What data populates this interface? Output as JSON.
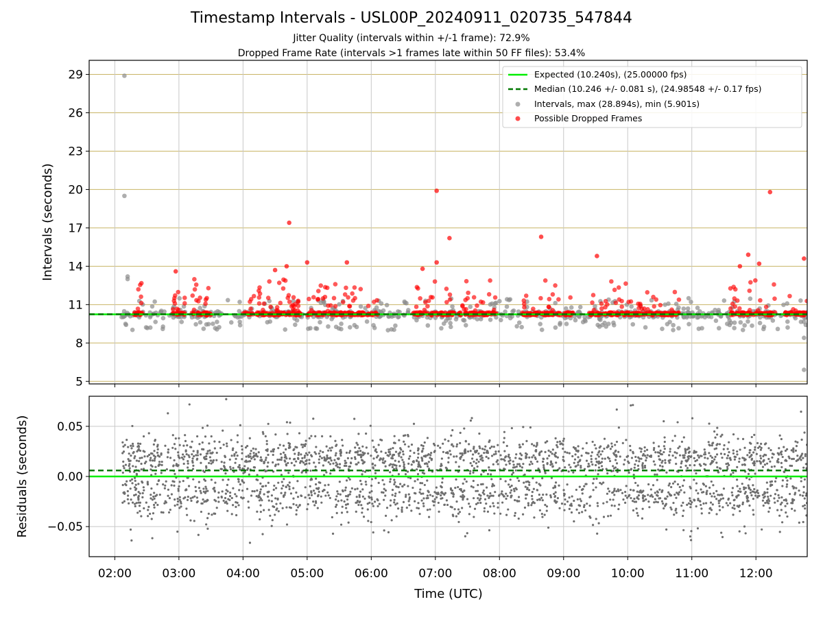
{
  "header": {
    "title": "Timestamp Intervals - USL00P_20240911_020735_547844",
    "subtitle1": "Jitter Quality (intervals within +/-1 frame): 72.9%",
    "subtitle2": "Dropped Frame Rate (intervals >1 frames late within 50 FF files): 53.4%"
  },
  "colors": {
    "expected": "#00ee00",
    "median": "#007700",
    "intervals": "#8c8c8c",
    "dropped": "#ff0000",
    "hgrid_top": "#c8b464",
    "grid": "#c8c8c8",
    "residuals": "#6e6e6e"
  },
  "chart_data": [
    {
      "type": "scatter",
      "ylabel": "Intervals (seconds)",
      "xlim": [
        1.6,
        12.8
      ],
      "ylim": [
        4.8,
        30.1
      ],
      "yticks": [
        5,
        8,
        11,
        14,
        17,
        20,
        23,
        26,
        29
      ],
      "ytick_labels": [
        "5",
        "8",
        "11",
        "14",
        "17",
        "20",
        "23",
        "26",
        "29"
      ],
      "expected": 10.24,
      "median": 10.246,
      "legend_position": "top-right",
      "legend": [
        "Expected (10.240s), (25.00000 fps)",
        "Median (10.246 +/- 0.081 s), (24.98548 +/- 0.17 fps)",
        "Intervals, max (28.894s), min (5.901s)",
        "Possible Dropped Frames"
      ],
      "intervals_max": 28.894,
      "intervals_min": 5.901,
      "dropped_cluster_ranges": [
        [
          2.3,
          2.45
        ],
        [
          2.9,
          3.1
        ],
        [
          3.2,
          3.5
        ],
        [
          4.0,
          4.9
        ],
        [
          5.0,
          6.1
        ],
        [
          6.65,
          7.3
        ],
        [
          7.35,
          7.95
        ],
        [
          8.35,
          8.95
        ],
        [
          9.0,
          9.15
        ],
        [
          9.4,
          10.8
        ],
        [
          11.6,
          12.3
        ],
        [
          12.45,
          12.8
        ]
      ],
      "outliers": [
        {
          "x": 2.15,
          "y": 28.894,
          "kind": "interval"
        },
        {
          "x": 2.15,
          "y": 19.5,
          "kind": "interval"
        },
        {
          "x": 2.2,
          "y": 13.2,
          "kind": "interval"
        },
        {
          "x": 2.2,
          "y": 13.0,
          "kind": "interval"
        },
        {
          "x": 12.75,
          "y": 5.901,
          "kind": "interval"
        },
        {
          "x": 12.75,
          "y": 8.4,
          "kind": "interval"
        },
        {
          "x": 4.72,
          "y": 17.4,
          "kind": "dropped"
        },
        {
          "x": 7.02,
          "y": 19.9,
          "kind": "dropped"
        },
        {
          "x": 7.22,
          "y": 16.2,
          "kind": "dropped"
        },
        {
          "x": 8.65,
          "y": 16.3,
          "kind": "dropped"
        },
        {
          "x": 12.22,
          "y": 19.8,
          "kind": "dropped"
        },
        {
          "x": 9.52,
          "y": 14.8,
          "kind": "dropped"
        },
        {
          "x": 11.88,
          "y": 14.9,
          "kind": "dropped"
        },
        {
          "x": 12.75,
          "y": 14.6,
          "kind": "dropped"
        },
        {
          "x": 5.0,
          "y": 14.3,
          "kind": "dropped"
        },
        {
          "x": 5.62,
          "y": 14.3,
          "kind": "dropped"
        },
        {
          "x": 7.02,
          "y": 14.3,
          "kind": "dropped"
        },
        {
          "x": 4.68,
          "y": 14.0,
          "kind": "dropped"
        },
        {
          "x": 11.75,
          "y": 14.0,
          "kind": "dropped"
        },
        {
          "x": 12.05,
          "y": 14.2,
          "kind": "dropped"
        },
        {
          "x": 2.95,
          "y": 13.6,
          "kind": "dropped"
        },
        {
          "x": 4.5,
          "y": 13.7,
          "kind": "dropped"
        },
        {
          "x": 6.8,
          "y": 13.8,
          "kind": "dropped"
        }
      ]
    },
    {
      "type": "scatter",
      "xlabel": "Time (UTC)",
      "ylabel": "Residuals (seconds)",
      "xlim": [
        1.6,
        12.8
      ],
      "ylim": [
        -0.08,
        0.08
      ],
      "yticks": [
        -0.05,
        0.0,
        0.05
      ],
      "ytick_labels": [
        "−0.05",
        "0.00",
        "0.05"
      ],
      "expected": 0.0,
      "median": 0.006,
      "xticks": [
        2,
        3,
        4,
        5,
        6,
        7,
        8,
        9,
        10,
        11,
        12
      ],
      "xtick_labels": [
        "02:00",
        "03:00",
        "04:00",
        "05:00",
        "06:00",
        "07:00",
        "08:00",
        "09:00",
        "10:00",
        "11:00",
        "12:00"
      ]
    }
  ]
}
